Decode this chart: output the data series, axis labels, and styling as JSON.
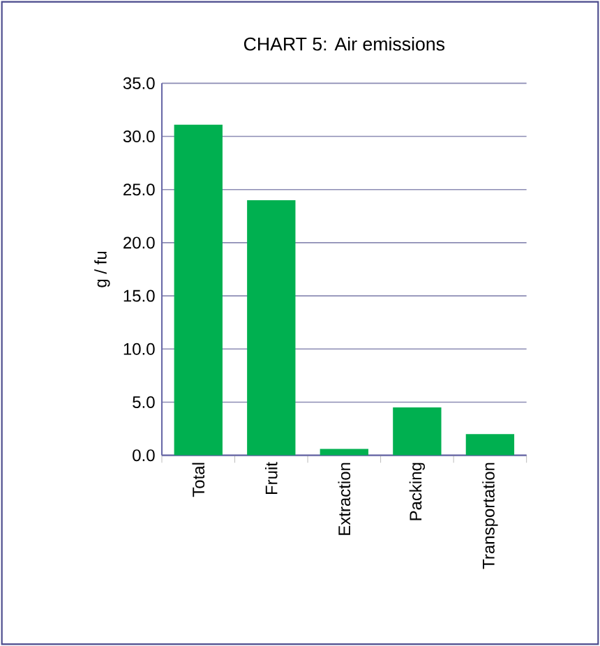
{
  "chart_data": {
    "type": "bar",
    "title": "CHART 5: Air emissions",
    "ylabel": "g / fu",
    "categories": [
      "Total",
      "Fruit",
      "Extraction",
      "Packing",
      "Transportation"
    ],
    "values": [
      31.1,
      24.0,
      0.6,
      4.5,
      2.0
    ],
    "color": "#00b050",
    "ylim": [
      0,
      35
    ],
    "yticks": [
      {
        "value": 0,
        "label": "0.0"
      },
      {
        "value": 5,
        "label": "5.0"
      },
      {
        "value": 10,
        "label": "10.0"
      },
      {
        "value": 15,
        "label": "15.0"
      },
      {
        "value": 20,
        "label": "20.0"
      },
      {
        "value": 25,
        "label": "25.0"
      },
      {
        "value": 30,
        "label": "30.0"
      },
      {
        "value": 35,
        "label": "35.0"
      }
    ],
    "grid": "y"
  }
}
